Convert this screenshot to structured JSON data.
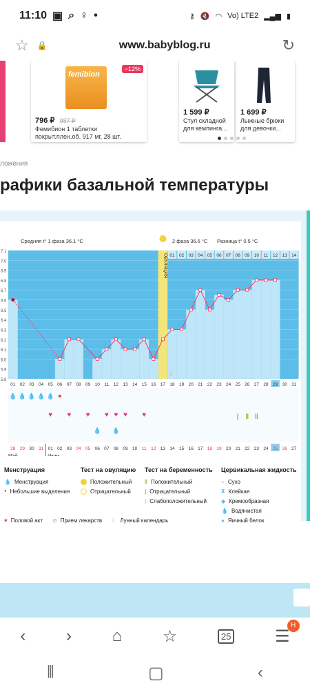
{
  "status_bar": {
    "time": "11:10",
    "carrier": "Vo) LTE2"
  },
  "url_bar": {
    "url": "www.babyblog.ru"
  },
  "products": [
    {
      "price": "796 ₽",
      "old_price": "987 ₽",
      "discount": "−12%",
      "name": "Фемибион 1 таблетки покрыт.плен.об. 917 мг, 28 шт.",
      "brand": "femibion"
    },
    {
      "price": "1 599 ₽",
      "name": "Стул складной для кемпинга..."
    },
    {
      "price": "1 699 ₽",
      "name": "Лыжные брюки для девочки..."
    }
  ],
  "breadcrumb": "ложения",
  "page_title": "рафики базальной температуры",
  "chart": {
    "avg_phase1": "Средняя t° 1 фаза 36.1 °C",
    "avg_phase2": "2 фаза 36.6 °C",
    "difference": "Разница t° 0.5 °C",
    "ovulation_label": "ОВУЛЯЦИЯ",
    "phase2_days": [
      "01",
      "02",
      "03",
      "04",
      "05",
      "06",
      "07",
      "08",
      "09",
      "10",
      "11",
      "12",
      "13",
      "14"
    ],
    "y_ticks": [
      "7.1",
      "7.0",
      "6.9",
      "6.8",
      "6.7",
      "6.6",
      "6.5",
      "6.4",
      "6.3",
      "6.2",
      "6.1",
      "6.0",
      "5.9",
      "5.8"
    ],
    "cycle_days": [
      "01",
      "02",
      "03",
      "04",
      "05",
      "06",
      "07",
      "08",
      "09",
      "10",
      "11",
      "12",
      "13",
      "14",
      "15",
      "16",
      "17",
      "18",
      "19",
      "20",
      "21",
      "22",
      "23",
      "24",
      "25",
      "26",
      "27",
      "28",
      "29",
      "30",
      "31"
    ],
    "dates": [
      "28",
      "29",
      "30",
      "31",
      "01",
      "02",
      "03",
      "04",
      "05",
      "06",
      "07",
      "08",
      "09",
      "10",
      "11",
      "12",
      "13",
      "14",
      "15",
      "16",
      "17",
      "18",
      "19",
      "20",
      "21",
      "22",
      "23",
      "24",
      "25",
      "26",
      "27"
    ],
    "month_may": "Май",
    "month_june": "Июнь"
  },
  "chart_data": {
    "type": "line",
    "x": [
      1,
      2,
      3,
      4,
      5,
      6,
      7,
      8,
      9,
      10,
      11,
      12,
      13,
      14,
      15,
      16,
      17,
      18,
      19,
      20,
      21,
      22,
      23,
      24,
      25,
      26,
      27,
      28,
      29,
      30,
      31
    ],
    "temps": [
      36.6,
      null,
      null,
      null,
      null,
      36.0,
      36.2,
      36.2,
      null,
      36.0,
      36.1,
      36.2,
      36.1,
      36.1,
      36.2,
      36.0,
      36.2,
      36.3,
      36.3,
      36.5,
      36.7,
      36.5,
      36.65,
      36.6,
      36.7,
      36.7,
      36.8,
      36.8,
      36.8,
      null,
      null
    ],
    "ylim": [
      35.8,
      37.1
    ],
    "ovulation_day": 17,
    "menstruation_days": [
      1,
      2,
      3,
      4,
      5
    ],
    "light_discharge_days": [
      6
    ],
    "intercourse_days": [
      5,
      7,
      9,
      11,
      12,
      13,
      15
    ],
    "cervical_days": [
      10,
      12
    ],
    "pregnancy_test_days": [
      25,
      26,
      27
    ]
  },
  "legend": {
    "menstruation_title": "Менструация",
    "menstruation": "Менструация",
    "light_discharge": "Небольшие выделения",
    "ovulation_test_title": "Тест на овуляцию",
    "positive": "Положительный",
    "negative": "Отрицательный",
    "pregnancy_test_title": "Тест на беременность",
    "preg_positive": "Положительный",
    "preg_negative": "Отрицательный",
    "preg_weak": "Слабоположительный",
    "cervical_title": "Цервикальная жидкость",
    "dry": "Сухо",
    "sticky": "Клейкая",
    "creamy": "Кремообразная",
    "watery": "Водянистая",
    "egg_white": "Яичный белок",
    "intercourse": "Половой акт",
    "medication": "Прием лекарств",
    "lunar": "Лунный календарь"
  },
  "browser_nav": {
    "tabs_count": "25",
    "badge": "H"
  },
  "colors": {
    "accent": "#ff3366",
    "chart_blue": "#5dbde9",
    "grid_bg": "#d7eef9",
    "ovulation": "#f3e57a"
  }
}
